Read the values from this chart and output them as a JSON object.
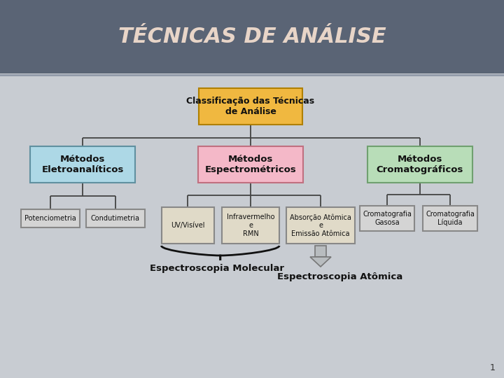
{
  "title": "TÉCNICAS DE ANÁLISE",
  "title_bg": "#5a6475",
  "title_color": "#e8d5c8",
  "bg_color": "#c8ccd2",
  "content_bg": "#c8ccd2",
  "root_text": "Classificação das Técnicas\nde Análise",
  "root_color": "#f0b840",
  "root_edge": "#b08000",
  "level1": [
    {
      "text": "Métodos\nEletroanalíticos",
      "color": "#add8e6",
      "edge": "#6090a0"
    },
    {
      "text": "Métodos\nEspectrométricos",
      "color": "#f4b8c8",
      "edge": "#c07080"
    },
    {
      "text": "Métodos\nCromatográficos",
      "color": "#b8ddb8",
      "edge": "#70a070"
    }
  ],
  "level2_eletro": [
    {
      "text": "Potenciometria"
    },
    {
      "text": "Condutimetria"
    }
  ],
  "level2_spectro": [
    {
      "text": "UV/Visível"
    },
    {
      "text": "Infravermelho\ne\nRMN"
    },
    {
      "text": "Absorção Atômica\ne\nEmissão Atômica"
    }
  ],
  "level2_croma": [
    {
      "text": "Cromatografia\nGasosa"
    },
    {
      "text": "Cromatografia\nLíquida"
    }
  ],
  "label_mol": "Espectroscopia Molecular",
  "label_atom": "Espectroscopia Atômica",
  "page_num": "1"
}
